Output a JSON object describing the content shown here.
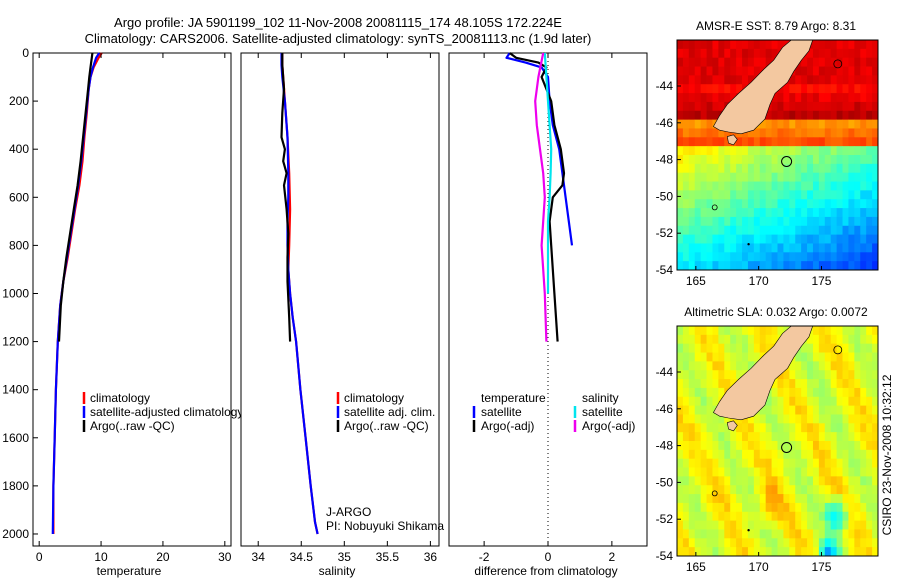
{
  "header": {
    "line1": "Argo profile: JA 5901199_102 11-Nov-2008 20081115_174 48.105S 172.224E",
    "line2": "Climatology: CARS2006. Satellite-adjusted climatology: synTS_20081113.nc (1.9d later)"
  },
  "side_label": "CSIRO 23-Nov-2008 10:32:12",
  "colors": {
    "climatology": "#ff0000",
    "satellite": "#0000ff",
    "argo": "#000000",
    "sal_satellite": "#00e5ee",
    "sal_argo": "#ee00ee",
    "land": "#f3c8a0"
  },
  "chart_data": [
    {
      "type": "line",
      "xlabel": "temperature",
      "ylabel": "",
      "xlim": [
        -1,
        31
      ],
      "ylim": [
        2050,
        0
      ],
      "xticks": [
        0,
        10,
        20,
        30
      ],
      "xtick_labels": [
        "0",
        "10",
        "20",
        "30"
      ],
      "yticks": [
        0,
        200,
        400,
        600,
        800,
        1000,
        1200,
        1400,
        1600,
        1800,
        2000
      ],
      "ytick_labels": [
        "0",
        "200",
        "400",
        "600",
        "800",
        "1000",
        "1200",
        "1400",
        "1600",
        "1800",
        "2000"
      ],
      "legend": {
        "position": "lower-right",
        "entries": [
          {
            "label": "climatology",
            "color": "#ff0000"
          },
          {
            "label": "satellite-adjusted climatology",
            "color": "#0000ff"
          },
          {
            "label": "Argo(..raw -QC)",
            "color": "#000000"
          }
        ]
      },
      "series": [
        {
          "name": "climatology",
          "color": "#ff0000",
          "x": [
            10.1,
            9.6,
            8.8,
            8.3,
            8.0,
            7.7,
            7.3,
            7.0,
            6.5,
            5.8,
            5.2,
            4.6,
            3.9,
            3.4,
            3.0,
            2.7,
            2.5,
            2.3,
            2.3
          ],
          "y": [
            0,
            20,
            60,
            100,
            150,
            250,
            350,
            450,
            550,
            650,
            750,
            850,
            950,
            1050,
            1200,
            1400,
            1600,
            1800,
            2000
          ]
        },
        {
          "name": "satellite-adjusted climatology",
          "color": "#0000ff",
          "x": [
            9.7,
            9.2,
            8.7,
            8.3,
            8.0,
            7.6,
            7.2,
            6.8,
            6.3,
            5.7,
            5.1,
            4.5,
            3.9,
            3.4,
            3.0,
            2.7,
            2.5,
            2.3,
            2.2
          ],
          "y": [
            0,
            20,
            60,
            100,
            150,
            250,
            350,
            450,
            550,
            650,
            750,
            850,
            950,
            1050,
            1200,
            1400,
            1600,
            1800,
            2000
          ]
        },
        {
          "name": "Argo(..raw -QC)",
          "color": "#000000",
          "x": [
            8.6,
            8.5,
            8.3,
            8.1,
            7.9,
            7.5,
            7.1,
            6.7,
            6.2,
            5.6,
            5.0,
            4.4,
            3.9,
            3.5,
            3.2
          ],
          "y": [
            0,
            20,
            60,
            100,
            150,
            250,
            350,
            450,
            550,
            650,
            750,
            850,
            950,
            1050,
            1200
          ]
        }
      ]
    },
    {
      "type": "line",
      "xlabel": "salinity",
      "ylabel": "",
      "xlim": [
        33.8,
        36.1
      ],
      "ylim": [
        2050,
        0
      ],
      "xticks": [
        34,
        34.5,
        35,
        35.5,
        36
      ],
      "xtick_labels": [
        "34",
        "34.5",
        "35",
        "35.5",
        "36"
      ],
      "yticks": [],
      "ytick_labels": [],
      "legend": {
        "position": "lower-right",
        "entries": [
          {
            "label": "climatology",
            "color": "#ff0000"
          },
          {
            "label": "satellite adj. clim.",
            "color": "#0000ff"
          },
          {
            "label": "Argo(..raw -QC)",
            "color": "#000000"
          }
        ]
      },
      "annotation": {
        "lines": [
          "J-ARGO",
          "PI: Nobuyuki Shikama"
        ]
      },
      "series": [
        {
          "name": "climatology",
          "color": "#ff0000",
          "x": [
            34.28,
            34.28,
            34.29,
            34.31,
            34.34,
            34.36,
            34.37,
            34.36,
            34.35,
            34.37,
            34.4,
            34.44,
            34.49,
            34.55,
            34.61,
            34.66,
            34.69
          ],
          "y": [
            0,
            50,
            100,
            200,
            350,
            500,
            650,
            800,
            900,
            1000,
            1100,
            1200,
            1400,
            1600,
            1800,
            1950,
            2000
          ]
        },
        {
          "name": "satellite adj. clim.",
          "color": "#0000ff",
          "x": [
            34.27,
            34.27,
            34.28,
            34.31,
            34.34,
            34.35,
            34.35,
            34.34,
            34.34,
            34.35,
            34.37,
            34.4,
            34.44,
            34.49,
            34.55,
            34.61,
            34.66,
            34.69
          ],
          "y": [
            0,
            50,
            100,
            200,
            350,
            500,
            600,
            700,
            800,
            900,
            1000,
            1100,
            1200,
            1400,
            1600,
            1800,
            1950,
            2000
          ]
        },
        {
          "name": "Argo(..raw -QC)",
          "color": "#000000",
          "x": [
            34.28,
            34.28,
            34.3,
            34.28,
            34.27,
            34.31,
            34.29,
            34.33,
            34.3,
            34.33,
            34.35,
            34.34,
            34.34,
            34.36,
            34.37
          ],
          "y": [
            0,
            50,
            150,
            250,
            350,
            400,
            450,
            500,
            550,
            650,
            750,
            850,
            950,
            1100,
            1200
          ]
        }
      ]
    },
    {
      "type": "line",
      "xlabel": "difference from climatology",
      "ylabel": "",
      "xlim": [
        -3.1,
        3.1
      ],
      "ylim": [
        2050,
        0
      ],
      "xticks": [
        -2,
        0,
        2
      ],
      "xtick_labels": [
        "-2",
        "0",
        "2"
      ],
      "yticks": [],
      "ytick_labels": [],
      "zero_line": true,
      "legend": {
        "position": "lower-center",
        "columns": [
          {
            "title": "temperature",
            "entries": [
              {
                "label": "satellite",
                "color": "#0000ff"
              },
              {
                "label": "Argo(-adj)",
                "color": "#000000"
              }
            ]
          },
          {
            "title": "salinity",
            "entries": [
              {
                "label": "satellite",
                "color": "#00e5ee"
              },
              {
                "label": "Argo(-adj)",
                "color": "#ee00ee"
              }
            ]
          }
        ]
      },
      "series": [
        {
          "name": "temperature satellite",
          "color": "#0000ff",
          "x": [
            -1.2,
            -1.3,
            -0.7,
            -0.2,
            0.0,
            0.05,
            0.15,
            0.35,
            0.45,
            0.55,
            0.65,
            0.75
          ],
          "y": [
            0,
            20,
            40,
            60,
            100,
            200,
            300,
            400,
            500,
            600,
            700,
            800
          ]
        },
        {
          "name": "temperature Argo(-adj)",
          "color": "#000000",
          "x": [
            -1.2,
            -1.0,
            -0.3,
            -0.05,
            -0.2,
            0.1,
            0.2,
            0.4,
            0.5,
            0.45,
            0.15,
            0.05,
            0.1,
            0.15,
            0.2,
            0.25,
            0.3
          ],
          "y": [
            0,
            20,
            40,
            60,
            100,
            200,
            300,
            400,
            500,
            550,
            600,
            700,
            800,
            900,
            1000,
            1100,
            1200
          ]
        },
        {
          "name": "salinity satellite",
          "color": "#00e5ee",
          "x": [
            -0.1,
            -0.05,
            0.0,
            0.05,
            0.1,
            0.08,
            0.05,
            0.0,
            0.0,
            0.0,
            0.0
          ],
          "y": [
            0,
            100,
            200,
            300,
            400,
            500,
            600,
            700,
            800,
            900,
            1000
          ]
        },
        {
          "name": "salinity Argo(-adj)",
          "color": "#ee00ee",
          "x": [
            -0.15,
            -0.3,
            -0.4,
            -0.35,
            -0.25,
            -0.15,
            -0.1,
            -0.15,
            -0.2,
            -0.15,
            -0.1,
            -0.05
          ],
          "y": [
            0,
            100,
            200,
            300,
            400,
            500,
            600,
            700,
            800,
            900,
            1000,
            1200
          ]
        }
      ]
    },
    {
      "type": "heatmap",
      "title": "AMSR-E SST: 8.79 Argo: 8.31",
      "xlim": [
        163.5,
        179.5
      ],
      "ylim": [
        -54,
        -41.5
      ],
      "xticks": [
        165,
        170,
        175
      ],
      "xtick_labels": [
        "165",
        "170",
        "175"
      ],
      "yticks": [
        -54,
        -52,
        -50,
        -48,
        -46,
        -44
      ],
      "ytick_labels": [
        "-54",
        "-52",
        "-50",
        "-48",
        "-46",
        "-44"
      ],
      "argo_position": {
        "lon": 172.224,
        "lat": -48.105
      },
      "colormap": "jet"
    },
    {
      "type": "heatmap",
      "title": "Altimetric SLA: 0.032 Argo: 0.0072",
      "xlim": [
        163.5,
        179.5
      ],
      "ylim": [
        -54,
        -41.5
      ],
      "xticks": [
        165,
        170,
        175
      ],
      "xtick_labels": [
        "165",
        "170",
        "175"
      ],
      "yticks": [
        -54,
        -52,
        -50,
        -48,
        -46,
        -44
      ],
      "ytick_labels": [
        "-54",
        "-52",
        "-50",
        "-48",
        "-46",
        "-44"
      ],
      "argo_position": {
        "lon": 172.224,
        "lat": -48.105
      },
      "colormap": "jet"
    }
  ]
}
